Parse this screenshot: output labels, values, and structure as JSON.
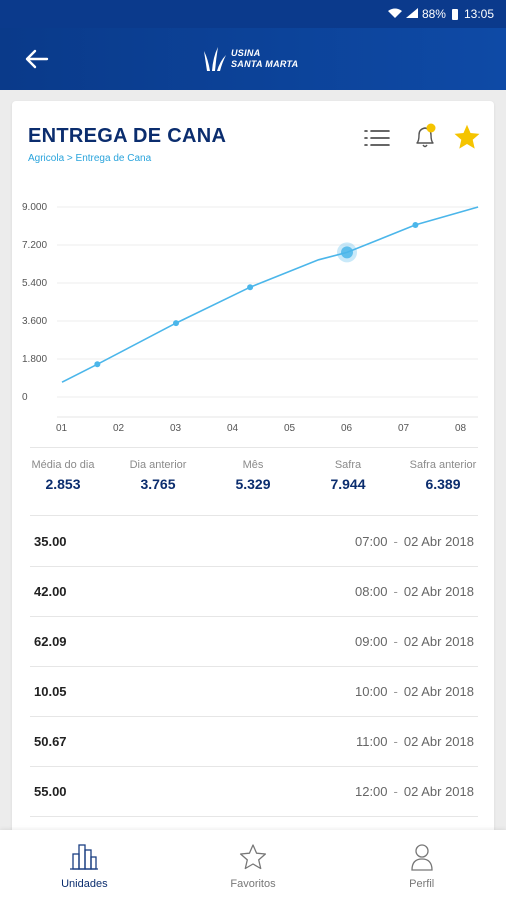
{
  "status_bar": {
    "battery": "88%",
    "time": "13:05"
  },
  "header": {
    "logo_line1": "USINA",
    "logo_line2": "SANTA MARTA"
  },
  "page": {
    "title": "ENTREGA DE CANA",
    "breadcrumb": "Agricola > Entrega de Cana"
  },
  "chart_data": {
    "type": "line",
    "x": [
      "01",
      "02",
      "03",
      "04",
      "05",
      "06",
      "07",
      "08"
    ],
    "y_ticks": [
      "9.000",
      "7.200",
      "5.400",
      "3.600",
      "1.800",
      "0"
    ],
    "ylim": [
      0,
      9000
    ],
    "series": [
      {
        "points": [
          {
            "x": 0.0,
            "y": 700
          },
          {
            "x": 0.62,
            "y": 1550
          },
          {
            "x": 2.0,
            "y": 3500
          },
          {
            "x": 3.3,
            "y": 5200
          },
          {
            "x": 4.5,
            "y": 6500
          },
          {
            "x": 5.0,
            "y": 6850
          },
          {
            "x": 6.2,
            "y": 8150
          },
          {
            "x": 7.3,
            "y": 9000
          }
        ]
      }
    ],
    "markers": [
      1,
      2,
      3,
      6
    ],
    "highlight": 5,
    "color": "#4bb6ea"
  },
  "stats": [
    {
      "label": "Média do dia",
      "value": "2.853"
    },
    {
      "label": "Dia anterior",
      "value": "3.765"
    },
    {
      "label": "Mês",
      "value": "5.329"
    },
    {
      "label": "Safra",
      "value": "7.944"
    },
    {
      "label": "Safra anterior",
      "value": "6.389"
    }
  ],
  "entries": [
    {
      "value": "35.00",
      "time": "07:00",
      "date": "02 Abr 2018"
    },
    {
      "value": "42.00",
      "time": "08:00",
      "date": "02 Abr 2018"
    },
    {
      "value": "62.09",
      "time": "09:00",
      "date": "02 Abr 2018"
    },
    {
      "value": "10.05",
      "time": "10:00",
      "date": "02 Abr 2018"
    },
    {
      "value": "50.67",
      "time": "11:00",
      "date": "02 Abr 2018"
    },
    {
      "value": "55.00",
      "time": "12:00",
      "date": "02 Abr 2018"
    }
  ],
  "separator": "-",
  "nav": [
    {
      "label": "Unidades",
      "icon": "buildings-icon",
      "active": true
    },
    {
      "label": "Favoritos",
      "icon": "star-outline-icon",
      "active": false
    },
    {
      "label": "Perfil",
      "icon": "user-icon",
      "active": false
    }
  ],
  "colors": {
    "primary": "#0b3a8c",
    "title": "#0b2d6e",
    "accent": "#2aa4dc",
    "star": "#f5c400"
  }
}
